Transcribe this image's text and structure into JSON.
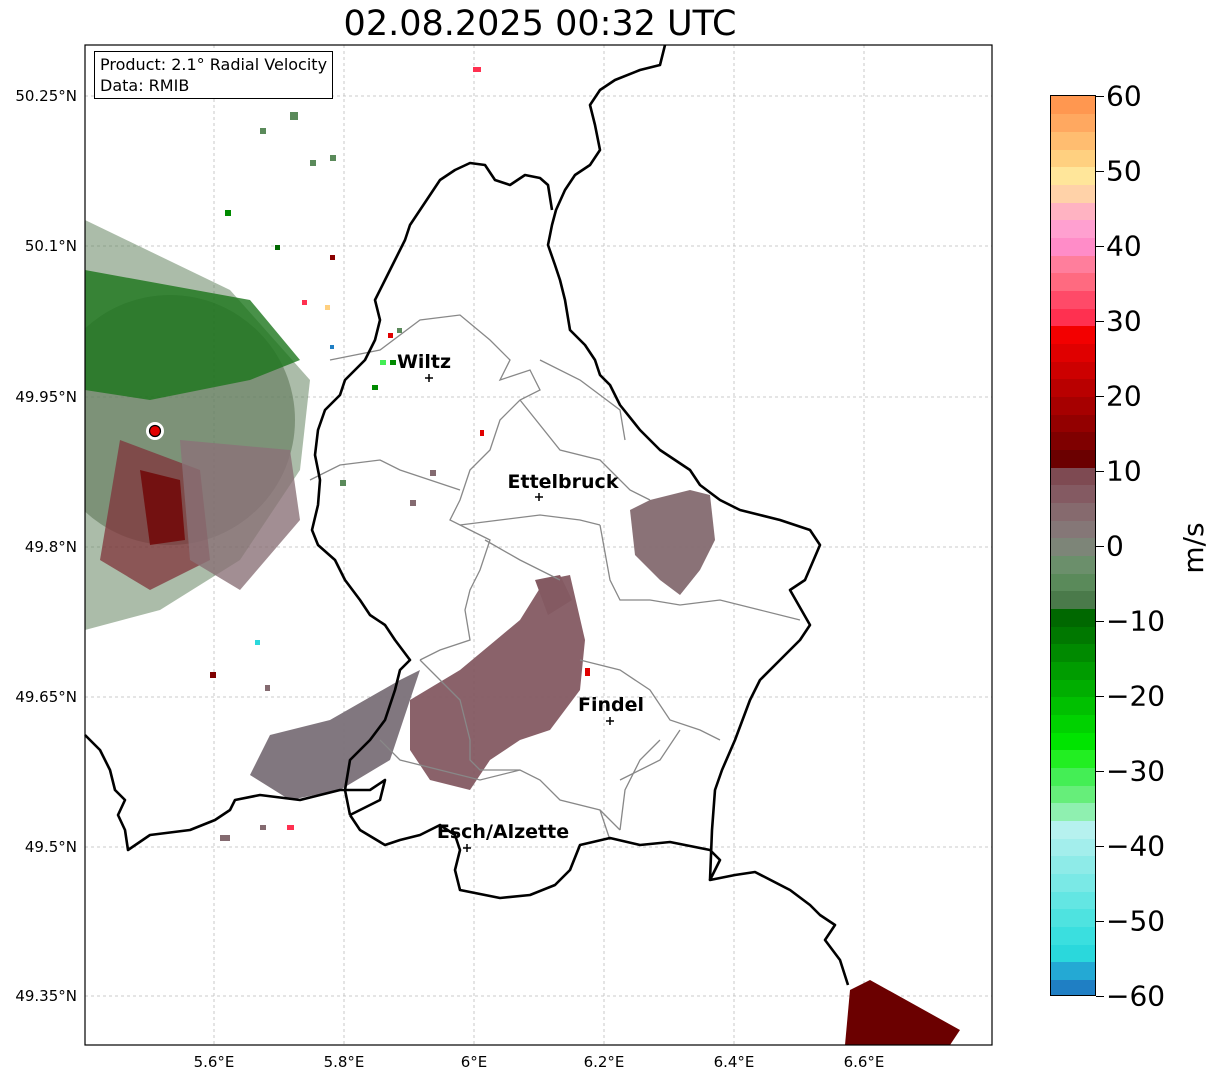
{
  "title": "02.08.2025 00:32 UTC",
  "info": {
    "product": "Product: 2.1° Radial Velocity",
    "data": "Data: RMIB"
  },
  "map": {
    "lat_ticks": [
      "50.25°N",
      "50.1°N",
      "49.95°N",
      "49.8°N",
      "49.65°N",
      "49.5°N",
      "49.35°N"
    ],
    "lon_ticks": [
      "5.6°E",
      "5.8°E",
      "6°E",
      "6.2°E",
      "6.4°E",
      "6.6°E"
    ],
    "cities": [
      {
        "name": "Wiltz",
        "lon": 5.93,
        "lat": 49.967
      },
      {
        "name": "Ettelbruck",
        "lon": 6.103,
        "lat": 49.848
      },
      {
        "name": "Findel",
        "lon": 6.21,
        "lat": 49.626
      },
      {
        "name": "Esch/Alzette",
        "lon": 5.99,
        "lat": 49.498
      }
    ],
    "radar_site": {
      "lon": 5.505,
      "lat": 49.915
    }
  },
  "colorbar": {
    "unit": "m/s",
    "min": -60,
    "max": 60,
    "ticks": [
      "60",
      "50",
      "40",
      "30",
      "20",
      "10",
      "0",
      "−10",
      "−20",
      "−30",
      "−40",
      "−50",
      "−60"
    ],
    "colors": [
      "#1f7fc4",
      "#24a9d4",
      "#2ad8dc",
      "#3adfdf",
      "#4ee3e0",
      "#63e6e3",
      "#7ae9e6",
      "#8eebe8",
      "#a3eeec",
      "#b6f1ef",
      "#8ff0b0",
      "#66ee7a",
      "#44ee55",
      "#22ee22",
      "#00e400",
      "#00d200",
      "#00c000",
      "#00ae00",
      "#009c00",
      "#008a00",
      "#007800",
      "#006800",
      "#4a7a4a",
      "#5a8a5a",
      "#6b8f6b",
      "#7d8578",
      "#857777",
      "#866a6e",
      "#845a62",
      "#7e4a52",
      "#6b0000",
      "#7f0000",
      "#930000",
      "#a60000",
      "#b90000",
      "#cd0000",
      "#e00000",
      "#f30000",
      "#ff3050",
      "#ff4a68",
      "#ff6a80",
      "#ff7e9c",
      "#ff8cc8",
      "#ffa0d0",
      "#ffb3c2",
      "#ffd2a8",
      "#ffe69a",
      "#ffd080",
      "#ffbd70",
      "#ffa860",
      "#ff9750"
    ]
  }
}
